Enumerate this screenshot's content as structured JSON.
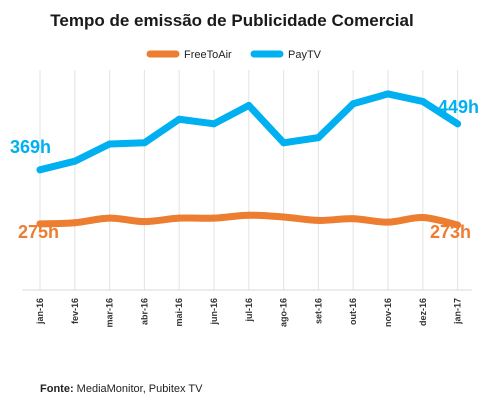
{
  "chart_data": {
    "type": "line",
    "title": "Tempo de emissão de Publicidade Comercial",
    "categories": [
      "jan-16",
      "fev-16",
      "mar-16",
      "abr-16",
      "mai-16",
      "jun-16",
      "jul-16",
      "ago-16",
      "set-16",
      "out-16",
      "nov-16",
      "dez-16",
      "jan-17"
    ],
    "series": [
      {
        "name": "FreeToAir",
        "color": "#ed7d31",
        "values": [
          275,
          277,
          285,
          279,
          285,
          285,
          290,
          287,
          281,
          284,
          278,
          286,
          273
        ]
      },
      {
        "name": "PayTV",
        "color": "#00b0f0",
        "values": [
          369,
          384,
          414,
          416,
          457,
          449,
          481,
          416,
          425,
          484,
          501,
          488,
          449
        ]
      }
    ],
    "ylim": [
      160,
      560
    ],
    "grid": "vertical",
    "legend": "top-center",
    "annotations": {
      "free_start": "275h",
      "free_end": "273h",
      "pay_start": "369h",
      "pay_end": "449h"
    }
  },
  "source": {
    "label": "Fonte:",
    "text": " MediaMonitor, Pubitex TV"
  }
}
